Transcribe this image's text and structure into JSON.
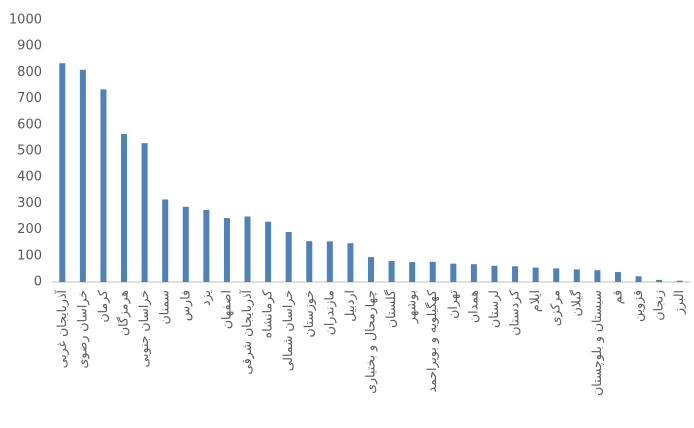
{
  "chart_data": {
    "type": "bar",
    "categories": [
      "آذربایجان غربی",
      "خراسان رضوی",
      "کرمان",
      "هرمزگان",
      "خراسان جنوبی",
      "سمنان",
      "فارس",
      "یزد",
      "اصفهان",
      "آذربایجان شرقی",
      "کرمانشاه",
      "خراسان شمالی",
      "خوزستان",
      "مازندران",
      "اردبیل",
      "چهارمحال و بختیاری",
      "گلستان",
      "بوشهر",
      "کهگیلویه و بویراحمد",
      "تهران",
      "همدان",
      "لرستان",
      "کردستان",
      "ایلام",
      "مرکزی",
      "گیلان",
      "سیستان و بلوچستان",
      "قم",
      "قزوین",
      "زنجان",
      "البرز"
    ],
    "values": [
      835,
      810,
      735,
      565,
      530,
      315,
      287,
      275,
      244,
      250,
      230,
      191,
      156,
      155,
      148,
      95,
      80,
      76,
      77,
      70,
      68,
      62,
      60,
      55,
      52,
      48,
      45,
      38,
      22,
      8,
      5
    ],
    "color": "#4f81bd",
    "ylim": [
      0,
      1000
    ],
    "yticks": [
      0,
      100,
      200,
      300,
      400,
      500,
      600,
      700,
      800,
      900,
      1000
    ],
    "grid": false
  }
}
